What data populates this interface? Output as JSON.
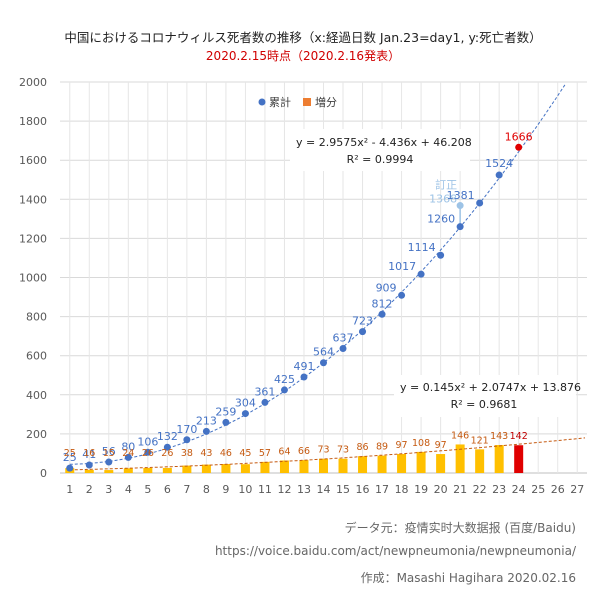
{
  "header": {
    "title": "中国におけるコロナウィルス死者数の推移（x:経過日数 Jan.23=day1, y:死亡者数）",
    "subtitle": "2020.2.15時点（2020.2.16発表）"
  },
  "credits": {
    "source": "データ元：疫情实时大数据报 (百度/Baidu)",
    "url": "https://voice.baidu.com/act/newpneumonia/newpneumonia/",
    "author": "作成：Masashi Hagihara 2020.02.16"
  },
  "chart_data": {
    "type": "scatter",
    "x": [
      1,
      2,
      3,
      4,
      5,
      6,
      7,
      8,
      9,
      10,
      11,
      12,
      13,
      14,
      15,
      16,
      17,
      18,
      19,
      20,
      21,
      22,
      23,
      24
    ],
    "xlim": [
      0.5,
      27.5
    ],
    "ylim": [
      0,
      2000
    ],
    "x_ticks": [
      1,
      2,
      3,
      4,
      5,
      6,
      7,
      8,
      9,
      10,
      11,
      12,
      13,
      14,
      15,
      16,
      17,
      18,
      19,
      20,
      21,
      22,
      23,
      24,
      25,
      26,
      27
    ],
    "y_ticks": [
      0,
      200,
      400,
      600,
      800,
      1000,
      1200,
      1400,
      1600,
      1800,
      2000
    ],
    "grid": true,
    "legend": {
      "placement": "top-left",
      "items": [
        {
          "label": "累計",
          "marker": "circle",
          "color": "#4472c4"
        },
        {
          "label": "増分",
          "marker": "square",
          "color": "#ed7d31"
        }
      ]
    },
    "series": [
      {
        "name": "累計",
        "color": "#4472c4",
        "values": [
          25,
          41,
          56,
          80,
          106,
          132,
          170,
          213,
          259,
          304,
          361,
          425,
          491,
          564,
          637,
          723,
          812,
          909,
          1017,
          1114,
          1260,
          1381,
          1524,
          1666
        ],
        "highlight_color": "#e00000",
        "highlight_index": 23
      },
      {
        "name": "増分",
        "color": "#ffc000",
        "label_color": "#c55a11",
        "values": [
          25,
          16,
          15,
          24,
          26,
          26,
          38,
          43,
          46,
          45,
          57,
          64,
          66,
          73,
          73,
          86,
          89,
          97,
          108,
          97,
          146,
          121,
          143,
          142
        ],
        "highlight_color": "#e00000",
        "highlight_index": 23
      }
    ],
    "correction": {
      "label": "訂正",
      "value": 1368,
      "x": 21,
      "color": "#9dc3e6"
    },
    "trendlines": [
      {
        "series": "累計",
        "coefficients": [
          2.9575,
          -4.436,
          46.208
        ],
        "equation": "y = 2.9575x² - 4.436x + 46.208",
        "r2": "R² = 0.9994",
        "color": "#4472c4"
      },
      {
        "series": "増分",
        "coefficients": [
          0.145,
          2.0747,
          13.876
        ],
        "equation": "y = 0.145x² + 2.0747x + 13.876",
        "r2": "R² = 0.9681",
        "color": "#c55a11"
      }
    ]
  }
}
